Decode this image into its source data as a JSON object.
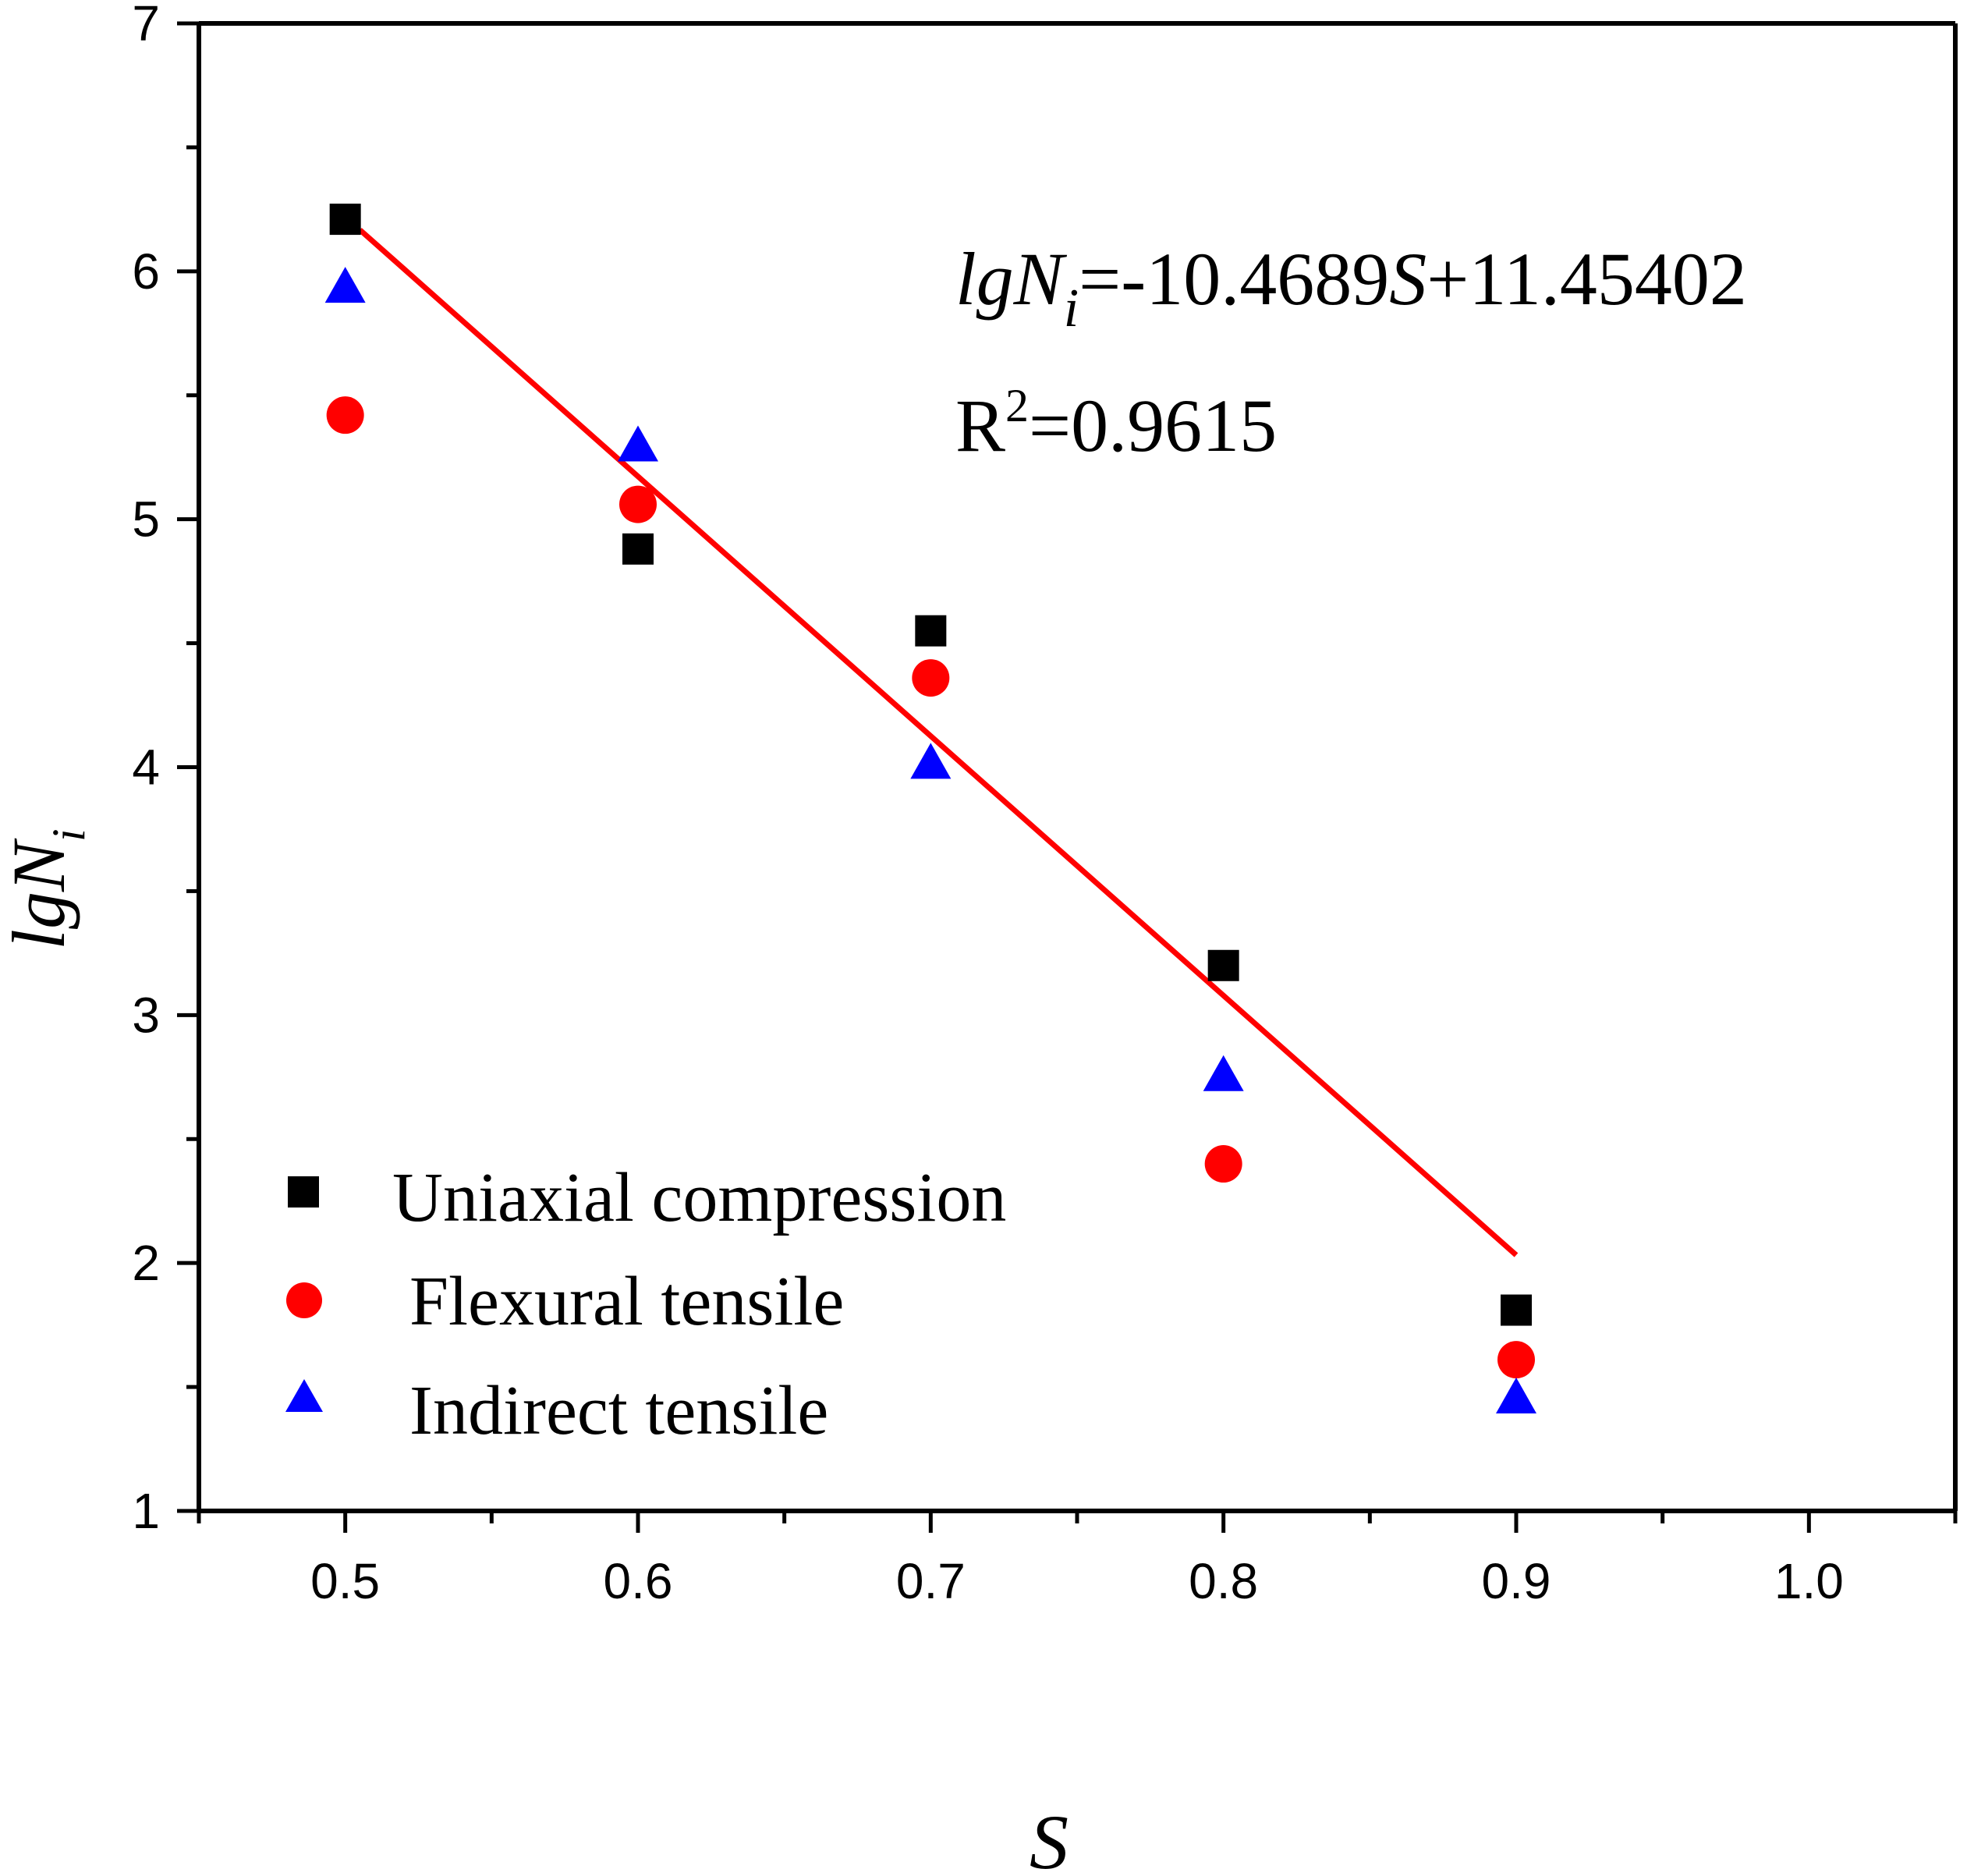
{
  "chart_data": {
    "type": "scatter",
    "xlabel": "S",
    "ylabel": {
      "base": "lgN",
      "sub": "i"
    },
    "xlim": [
      0.45,
      1.05
    ],
    "ylim": [
      1,
      7
    ],
    "x_ticks": [
      "0.5",
      "0.6",
      "0.7",
      "0.8",
      "0.9",
      "1.0"
    ],
    "x_tick_values": [
      0.5,
      0.6,
      0.7,
      0.8,
      0.9,
      1.0
    ],
    "y_ticks": [
      "1",
      "2",
      "3",
      "4",
      "5",
      "6",
      "7"
    ],
    "y_tick_values": [
      1,
      2,
      3,
      4,
      5,
      6,
      7
    ],
    "series": [
      {
        "name": "Uniaxial compression",
        "marker": "square",
        "color": "#000000",
        "x": [
          0.5,
          0.6,
          0.7,
          0.8,
          0.9
        ],
        "y": [
          6.21,
          4.88,
          4.55,
          3.2,
          1.81
        ]
      },
      {
        "name": "Flexural tensile",
        "marker": "circle",
        "color": "#ff0000",
        "x": [
          0.5,
          0.6,
          0.7,
          0.8,
          0.9
        ],
        "y": [
          5.42,
          5.06,
          4.36,
          2.4,
          1.61
        ]
      },
      {
        "name": "Indirect tensile",
        "marker": "triangle",
        "color": "#0000ff",
        "x": [
          0.5,
          0.6,
          0.7,
          0.8,
          0.9
        ],
        "y": [
          5.93,
          5.29,
          4.01,
          2.75,
          1.45
        ]
      }
    ],
    "fit_line": {
      "color": "#ff0000",
      "slope": -10.4689,
      "intercept": 11.45402,
      "x_range": [
        0.5,
        0.9
      ]
    },
    "annotations": {
      "equation_prefix": "lgN",
      "equation_sub": "i",
      "equation_mid": "=-10.4689",
      "equation_var": "S",
      "equation_suffix": "+11.45402",
      "r2_prefix": "R",
      "r2_sup": "2",
      "r2_value": "=0.9615"
    },
    "legend_position": "bottom-left",
    "grid": false
  }
}
